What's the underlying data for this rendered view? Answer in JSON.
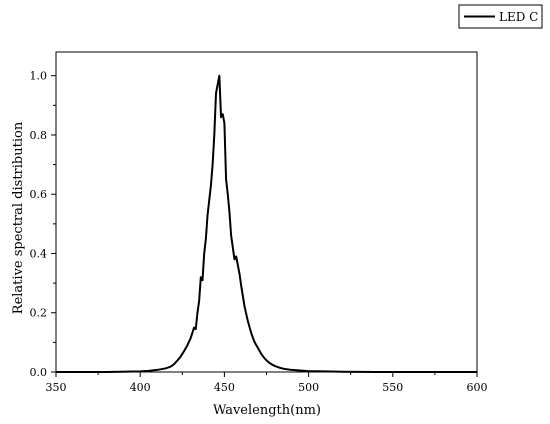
{
  "chart_data": {
    "type": "line",
    "title": "",
    "xlabel": "Wavelength(nm)",
    "ylabel": "Relative spectral distribution",
    "xlim": [
      350,
      600
    ],
    "ylim": [
      0,
      1.08
    ],
    "x_ticks": [
      350,
      400,
      450,
      500,
      550,
      600
    ],
    "x_tick_labels": [
      "350",
      "400",
      "450",
      "500",
      "550",
      "600"
    ],
    "y_ticks": [
      0.0,
      0.2,
      0.4,
      0.6,
      0.8,
      1.0
    ],
    "y_tick_labels": [
      "0.0",
      "0.2",
      "0.4",
      "0.6",
      "0.8",
      "1.0"
    ],
    "grid": false,
    "legend_position": "top-right",
    "series": [
      {
        "name": "LED C",
        "color": "#000000",
        "x": [
          350,
          380,
          400,
          405,
          410,
          415,
          418,
          420,
          422,
          424,
          426,
          428,
          430,
          432,
          433,
          434,
          435,
          436,
          437,
          438,
          439,
          440,
          441,
          442,
          443,
          444,
          445,
          446,
          447,
          448,
          449,
          450,
          451,
          452,
          453,
          454,
          455,
          456,
          457,
          458,
          459,
          460,
          462,
          464,
          466,
          468,
          470,
          472,
          474,
          476,
          478,
          480,
          483,
          486,
          490,
          495,
          500,
          510,
          520,
          540,
          560,
          580,
          600
        ],
        "y": [
          0,
          0,
          0.002,
          0.004,
          0.007,
          0.012,
          0.018,
          0.026,
          0.038,
          0.052,
          0.07,
          0.09,
          0.115,
          0.15,
          0.145,
          0.2,
          0.24,
          0.32,
          0.31,
          0.4,
          0.45,
          0.53,
          0.58,
          0.63,
          0.7,
          0.8,
          0.94,
          0.97,
          1.0,
          0.86,
          0.87,
          0.84,
          0.65,
          0.6,
          0.54,
          0.46,
          0.42,
          0.38,
          0.39,
          0.36,
          0.33,
          0.29,
          0.22,
          0.17,
          0.13,
          0.1,
          0.08,
          0.06,
          0.045,
          0.034,
          0.026,
          0.02,
          0.014,
          0.01,
          0.007,
          0.005,
          0.003,
          0.002,
          0.001,
          0,
          0,
          0,
          0
        ]
      }
    ]
  }
}
